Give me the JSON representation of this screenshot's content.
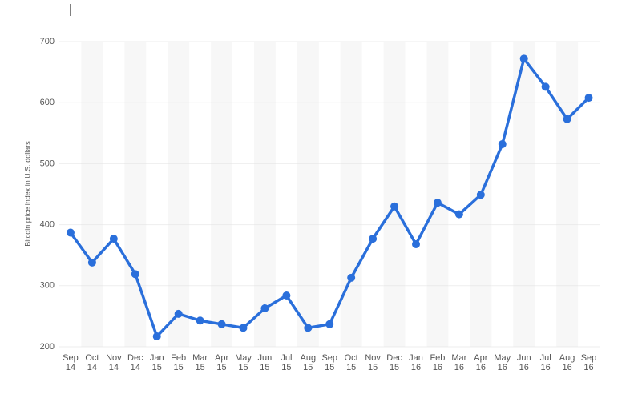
{
  "chart_data": {
    "type": "line",
    "y_label": "Bitcoin price index in U.S. dollars",
    "categories": [
      "Sep 14",
      "Oct 14",
      "Nov 14",
      "Dec 14",
      "Jan 15",
      "Feb 15",
      "Mar 15",
      "Apr 15",
      "May 15",
      "Jun 15",
      "Jul 15",
      "Aug 15",
      "Sep 15",
      "Oct 15",
      "Nov 15",
      "Dec 15",
      "Jan 16",
      "Feb 16",
      "Mar 16",
      "Apr 16",
      "May 16",
      "Jun 16",
      "Jul 16",
      "Aug 16",
      "Sep 16"
    ],
    "values": [
      387,
      338,
      377,
      319,
      217,
      254,
      243,
      237,
      231,
      263,
      284,
      231,
      237,
      313,
      377,
      430,
      368,
      436,
      417,
      449,
      532,
      672,
      626,
      573,
      608
    ],
    "color": "#2a6fdb",
    "ylim": [
      200,
      700
    ],
    "yticks": [
      200,
      300,
      400,
      500,
      600,
      700
    ],
    "grid": true
  }
}
